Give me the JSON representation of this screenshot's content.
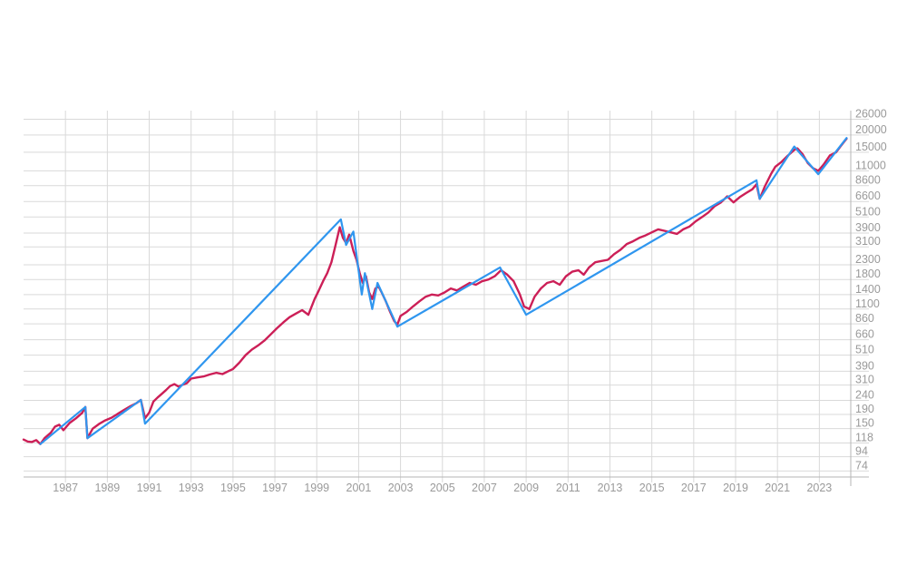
{
  "chart_data": {
    "type": "line",
    "title": "",
    "xlabel": "",
    "ylabel": "",
    "y_scale": "log",
    "grid": true,
    "legend": "none",
    "xlim": [
      1985.0,
      2024.5
    ],
    "ylim": [
      67,
      30000
    ],
    "x_ticks": [
      "1987",
      "1989",
      "1991",
      "1993",
      "1995",
      "1997",
      "1999",
      "2001",
      "2003",
      "2005",
      "2007",
      "2009",
      "2011",
      "2013",
      "2015",
      "2017",
      "2019",
      "2021",
      "2023"
    ],
    "y_ticks": [
      "26000",
      "20000",
      "15000",
      "11000",
      "8600",
      "6600",
      "5100",
      "3900",
      "3100",
      "2300",
      "1800",
      "1400",
      "1100",
      "860",
      "660",
      "510",
      "390",
      "310",
      "240",
      "190",
      "150",
      "118",
      "94",
      "74"
    ],
    "series": [
      {
        "color": "#cc1f57",
        "points": [
          [
            1985.0,
            125
          ],
          [
            1985.2,
            121
          ],
          [
            1985.4,
            120
          ],
          [
            1985.6,
            124
          ],
          [
            1985.8,
            116
          ],
          [
            1986.0,
            128
          ],
          [
            1986.3,
            140
          ],
          [
            1986.5,
            155
          ],
          [
            1986.7,
            160
          ],
          [
            1986.9,
            146
          ],
          [
            1987.2,
            165
          ],
          [
            1987.5,
            178
          ],
          [
            1987.8,
            195
          ],
          [
            1987.95,
            215
          ],
          [
            1988.05,
            128
          ],
          [
            1988.3,
            150
          ],
          [
            1988.6,
            162
          ],
          [
            1988.9,
            172
          ],
          [
            1989.2,
            180
          ],
          [
            1989.5,
            192
          ],
          [
            1989.8,
            205
          ],
          [
            1990.1,
            218
          ],
          [
            1990.4,
            230
          ],
          [
            1990.6,
            242
          ],
          [
            1990.8,
            178
          ],
          [
            1991.0,
            196
          ],
          [
            1991.2,
            235
          ],
          [
            1991.4,
            252
          ],
          [
            1991.6,
            268
          ],
          [
            1991.8,
            285
          ],
          [
            1992.0,
            305
          ],
          [
            1992.2,
            315
          ],
          [
            1992.4,
            302
          ],
          [
            1992.6,
            312
          ],
          [
            1992.8,
            320
          ],
          [
            1993.0,
            345
          ],
          [
            1993.3,
            352
          ],
          [
            1993.6,
            358
          ],
          [
            1993.9,
            370
          ],
          [
            1994.2,
            380
          ],
          [
            1994.5,
            372
          ],
          [
            1994.8,
            392
          ],
          [
            1995.0,
            405
          ],
          [
            1995.3,
            450
          ],
          [
            1995.6,
            510
          ],
          [
            1995.9,
            560
          ],
          [
            1996.2,
            600
          ],
          [
            1996.5,
            650
          ],
          [
            1996.8,
            720
          ],
          [
            1997.1,
            800
          ],
          [
            1997.4,
            880
          ],
          [
            1997.7,
            960
          ],
          [
            1998.0,
            1020
          ],
          [
            1998.3,
            1080
          ],
          [
            1998.6,
            1000
          ],
          [
            1998.9,
            1300
          ],
          [
            1999.1,
            1500
          ],
          [
            1999.3,
            1750
          ],
          [
            1999.5,
            2000
          ],
          [
            1999.7,
            2400
          ],
          [
            1999.9,
            3200
          ],
          [
            2000.1,
            4300
          ],
          [
            2000.25,
            3600
          ],
          [
            2000.4,
            3300
          ],
          [
            2000.55,
            3800
          ],
          [
            2000.75,
            2900
          ],
          [
            2000.9,
            2500
          ],
          [
            2001.05,
            2000
          ],
          [
            2001.2,
            1700
          ],
          [
            2001.35,
            1900
          ],
          [
            2001.5,
            1450
          ],
          [
            2001.65,
            1300
          ],
          [
            2001.8,
            1550
          ],
          [
            2001.95,
            1600
          ],
          [
            2002.1,
            1450
          ],
          [
            2002.3,
            1250
          ],
          [
            2002.5,
            1050
          ],
          [
            2002.7,
            900
          ],
          [
            2002.85,
            850
          ],
          [
            2003.0,
            980
          ],
          [
            2003.3,
            1050
          ],
          [
            2003.6,
            1150
          ],
          [
            2003.9,
            1250
          ],
          [
            2004.2,
            1350
          ],
          [
            2004.5,
            1400
          ],
          [
            2004.8,
            1380
          ],
          [
            2005.1,
            1450
          ],
          [
            2005.4,
            1550
          ],
          [
            2005.7,
            1500
          ],
          [
            2006.0,
            1600
          ],
          [
            2006.3,
            1700
          ],
          [
            2006.6,
            1650
          ],
          [
            2006.9,
            1750
          ],
          [
            2007.2,
            1800
          ],
          [
            2007.5,
            1900
          ],
          [
            2007.8,
            2100
          ],
          [
            2008.1,
            1950
          ],
          [
            2008.4,
            1750
          ],
          [
            2008.7,
            1400
          ],
          [
            2008.9,
            1150
          ],
          [
            2009.15,
            1100
          ],
          [
            2009.4,
            1350
          ],
          [
            2009.7,
            1550
          ],
          [
            2010.0,
            1700
          ],
          [
            2010.3,
            1750
          ],
          [
            2010.6,
            1650
          ],
          [
            2010.9,
            1900
          ],
          [
            2011.2,
            2050
          ],
          [
            2011.5,
            2100
          ],
          [
            2011.75,
            1950
          ],
          [
            2012.0,
            2200
          ],
          [
            2012.3,
            2400
          ],
          [
            2012.6,
            2450
          ],
          [
            2012.9,
            2500
          ],
          [
            2013.2,
            2750
          ],
          [
            2013.5,
            2950
          ],
          [
            2013.8,
            3250
          ],
          [
            2014.1,
            3400
          ],
          [
            2014.4,
            3600
          ],
          [
            2014.7,
            3750
          ],
          [
            2015.0,
            3950
          ],
          [
            2015.3,
            4150
          ],
          [
            2015.6,
            4050
          ],
          [
            2015.9,
            3950
          ],
          [
            2016.2,
            3850
          ],
          [
            2016.5,
            4150
          ],
          [
            2016.8,
            4350
          ],
          [
            2017.1,
            4750
          ],
          [
            2017.4,
            5100
          ],
          [
            2017.7,
            5500
          ],
          [
            2018.0,
            6100
          ],
          [
            2018.3,
            6500
          ],
          [
            2018.6,
            7200
          ],
          [
            2018.9,
            6500
          ],
          [
            2019.2,
            7100
          ],
          [
            2019.5,
            7600
          ],
          [
            2019.8,
            8100
          ],
          [
            2020.0,
            8800
          ],
          [
            2020.15,
            6900
          ],
          [
            2020.4,
            8500
          ],
          [
            2020.7,
            10500
          ],
          [
            2020.9,
            11800
          ],
          [
            2021.2,
            12800
          ],
          [
            2021.5,
            14200
          ],
          [
            2021.8,
            15600
          ],
          [
            2021.95,
            16000
          ],
          [
            2022.2,
            14500
          ],
          [
            2022.45,
            12500
          ],
          [
            2022.7,
            11500
          ],
          [
            2022.95,
            11000
          ],
          [
            2023.2,
            12200
          ],
          [
            2023.5,
            14200
          ],
          [
            2023.8,
            15000
          ],
          [
            2024.0,
            16500
          ],
          [
            2024.2,
            18000
          ],
          [
            2024.3,
            18800
          ]
        ]
      },
      {
        "color": "#2f96ef",
        "points": [
          [
            1985.8,
            116
          ],
          [
            1987.95,
            215
          ],
          [
            1988.05,
            128
          ],
          [
            1990.6,
            242
          ],
          [
            1990.8,
            163
          ],
          [
            2000.15,
            4900
          ],
          [
            2000.4,
            3200
          ],
          [
            2000.75,
            4000
          ],
          [
            2001.15,
            1400
          ],
          [
            2001.3,
            2000
          ],
          [
            2001.65,
            1100
          ],
          [
            2001.9,
            1700
          ],
          [
            2002.85,
            820
          ],
          [
            2007.75,
            2200
          ],
          [
            2009.0,
            1000
          ],
          [
            2020.0,
            9400
          ],
          [
            2020.15,
            6900
          ],
          [
            2021.8,
            16500
          ],
          [
            2022.95,
            10400
          ],
          [
            2024.3,
            19000
          ]
        ]
      }
    ]
  }
}
